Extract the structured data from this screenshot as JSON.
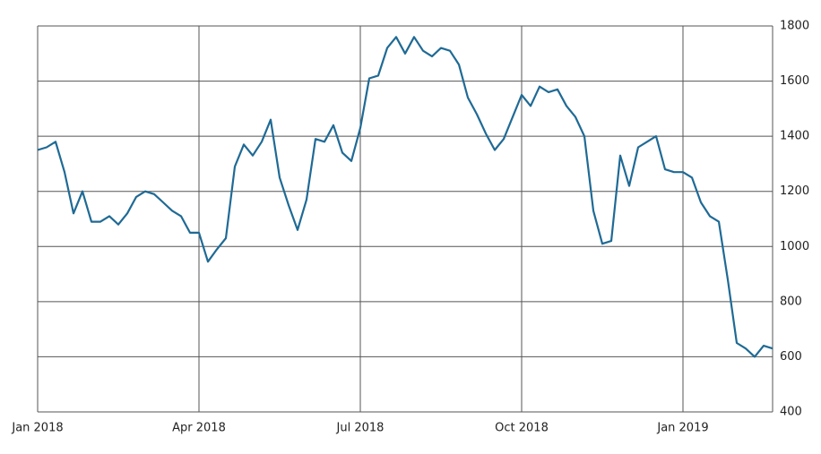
{
  "chart_data": {
    "type": "line",
    "categories": [
      "Jan 2018",
      null,
      null,
      null,
      null,
      null,
      null,
      null,
      null,
      null,
      null,
      null,
      null,
      null,
      null,
      null,
      null,
      null,
      "Apr 2018",
      null,
      null,
      null,
      null,
      null,
      null,
      null,
      null,
      null,
      null,
      null,
      null,
      null,
      null,
      null,
      null,
      null,
      "Jul 2018",
      null,
      null,
      null,
      null,
      null,
      null,
      null,
      null,
      null,
      null,
      null,
      null,
      null,
      null,
      null,
      null,
      null,
      "Oct 2018",
      null,
      null,
      null,
      null,
      null,
      null,
      null,
      null,
      null,
      null,
      null,
      null,
      null,
      null,
      null,
      null,
      null,
      "Jan 2019",
      null,
      null,
      null,
      null,
      null,
      null,
      null,
      null,
      null,
      null
    ],
    "series": [
      {
        "color": "#1f6a95",
        "values": [
          1350,
          1360,
          1380,
          1270,
          1120,
          1200,
          1090,
          1090,
          1110,
          1080,
          1120,
          1180,
          1200,
          1190,
          1160,
          1130,
          1110,
          1050,
          1050,
          945,
          990,
          1030,
          1290,
          1370,
          1330,
          1380,
          1460,
          1250,
          1150,
          1060,
          1170,
          1390,
          1380,
          1440,
          1340,
          1310,
          1430,
          1610,
          1620,
          1720,
          1760,
          1700,
          1760,
          1710,
          1690,
          1720,
          1710,
          1660,
          1540,
          1480,
          1410,
          1350,
          1390,
          1470,
          1550,
          1510,
          1580,
          1560,
          1570,
          1510,
          1470,
          1400,
          1130,
          1010,
          1020,
          1330,
          1220,
          1360,
          1380,
          1400,
          1280,
          1270,
          1270,
          1250,
          1160,
          1110,
          1090,
          880,
          650,
          630,
          600,
          640,
          630
        ]
      }
    ],
    "ylim": [
      400,
      1800
    ],
    "yticks": [
      400,
      600,
      800,
      1000,
      1200,
      1400,
      1600,
      1800
    ],
    "grid": true,
    "y_axis_side": "right"
  }
}
